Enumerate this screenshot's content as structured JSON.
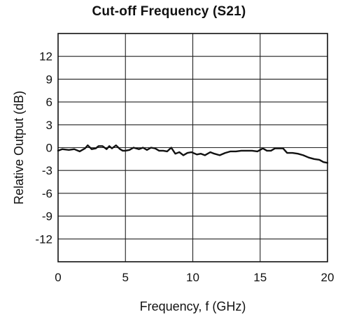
{
  "chart_data": {
    "type": "line",
    "title": "Cut-off Frequency (S21)",
    "xlabel": "Frequency, f (GHz)",
    "ylabel": "Relative Output (dB)",
    "xlim": [
      0,
      20
    ],
    "ylim": [
      -15,
      15
    ],
    "x_ticks": [
      0,
      5,
      10,
      15,
      20
    ],
    "y_ticks": [
      12,
      9,
      6,
      3,
      0,
      -3,
      -6,
      -9,
      -12
    ],
    "x_tick_labels": [
      "0",
      "5",
      "10",
      "15",
      "20"
    ],
    "y_tick_labels": [
      "12",
      "9",
      "6",
      "3",
      "0",
      "-3",
      "-6",
      "-9",
      "-12"
    ],
    "grid": true,
    "series": [
      {
        "color": "#111111",
        "x": [
          0,
          0.3,
          0.8,
          1.2,
          1.6,
          2.0,
          2.2,
          2.5,
          2.8,
          3.0,
          3.3,
          3.6,
          3.8,
          4.0,
          4.3,
          4.6,
          4.8,
          5.0,
          5.3,
          5.6,
          6.0,
          6.3,
          6.6,
          6.9,
          7.2,
          7.5,
          7.8,
          8.1,
          8.4,
          8.7,
          9.0,
          9.3,
          9.6,
          9.9,
          10.3,
          10.6,
          10.9,
          11.3,
          11.6,
          12.0,
          12.4,
          12.8,
          13.2,
          13.6,
          14.0,
          14.4,
          14.8,
          15.2,
          15.5,
          15.8,
          16.1,
          16.4,
          16.7,
          17.0,
          17.4,
          17.8,
          18.2,
          18.6,
          19.0,
          19.4,
          19.7,
          20.0
        ],
        "y": [
          -0.4,
          -0.2,
          -0.3,
          -0.2,
          -0.5,
          -0.1,
          0.3,
          -0.2,
          -0.1,
          0.2,
          0.2,
          -0.2,
          0.2,
          -0.1,
          0.3,
          -0.2,
          -0.4,
          -0.4,
          -0.3,
          0.0,
          -0.2,
          0.0,
          -0.3,
          0.0,
          -0.1,
          -0.4,
          -0.4,
          -0.5,
          0.0,
          -0.8,
          -0.6,
          -1.0,
          -0.7,
          -0.6,
          -0.9,
          -0.8,
          -1.0,
          -0.6,
          -0.8,
          -1.0,
          -0.7,
          -0.5,
          -0.5,
          -0.4,
          -0.4,
          -0.4,
          -0.5,
          -0.1,
          -0.4,
          -0.4,
          -0.1,
          -0.1,
          -0.1,
          -0.7,
          -0.7,
          -0.8,
          -1.0,
          -1.3,
          -1.5,
          -1.6,
          -1.9,
          -2.0
        ]
      }
    ]
  }
}
